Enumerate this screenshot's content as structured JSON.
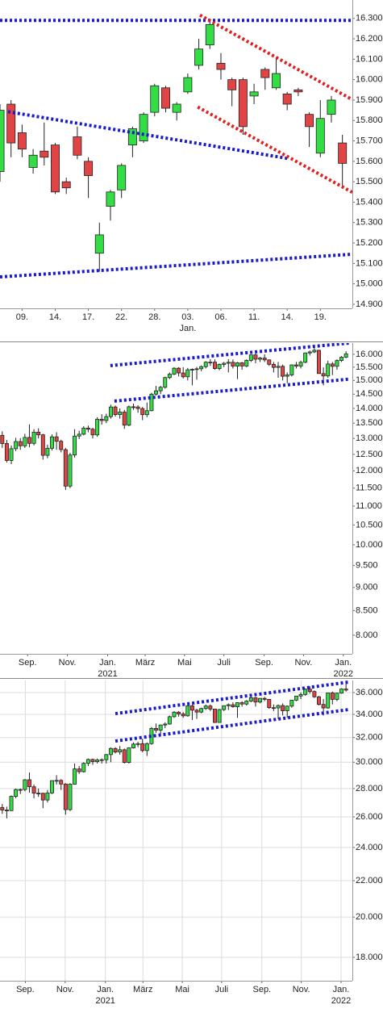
{
  "chart_data": [
    {
      "type": "candlestick",
      "log_scale": false,
      "grid": false,
      "up_color": "#33dd44",
      "down_color": "#e04444",
      "xlim": [
        0,
        31.9
      ],
      "ylim": [
        14880,
        16390
      ],
      "yticks": [
        {
          "value": 14900,
          "label": "14.900"
        },
        {
          "value": 15000,
          "label": "15.000"
        },
        {
          "value": 15100,
          "label": "15.100"
        },
        {
          "value": 15200,
          "label": "15.200"
        },
        {
          "value": 15300,
          "label": "15.300"
        },
        {
          "value": 15400,
          "label": "15.400"
        },
        {
          "value": 15500,
          "label": "15.500"
        },
        {
          "value": 15600,
          "label": "15.600"
        },
        {
          "value": 15700,
          "label": "15.700"
        },
        {
          "value": 15800,
          "label": "15.800"
        },
        {
          "value": 15900,
          "label": "15.900"
        },
        {
          "value": 16000,
          "label": "16.000"
        },
        {
          "value": 16100,
          "label": "16.100"
        },
        {
          "value": 16200,
          "label": "16.200"
        },
        {
          "value": 16300,
          "label": "16.300"
        }
      ],
      "xticks": [
        {
          "value": 2,
          "label": "09."
        },
        {
          "value": 5,
          "label": "14."
        },
        {
          "value": 8,
          "label": "17."
        },
        {
          "value": 11,
          "label": "22."
        },
        {
          "value": 14,
          "label": "28."
        },
        {
          "value": 17,
          "label": "03."
        },
        {
          "value": 20,
          "label": "06."
        },
        {
          "value": 23,
          "label": "11."
        },
        {
          "value": 26,
          "label": "14."
        },
        {
          "value": 29,
          "label": "19."
        }
      ],
      "xsubticks": [
        {
          "value": 17,
          "label": "Jan."
        }
      ],
      "open": [
        15550,
        15880,
        15740,
        15570,
        15650,
        15680,
        15500,
        15720,
        15600,
        15150,
        15380,
        15460,
        15680,
        15700,
        15840,
        15960,
        15840,
        15940,
        16070,
        16170,
        16080,
        16000,
        16000,
        15920,
        16050,
        15960,
        15930,
        15950,
        15830,
        15640,
        15830,
        15690
      ],
      "high": [
        15880,
        15900,
        15780,
        15660,
        15790,
        15690,
        15520,
        15770,
        15620,
        15300,
        15460,
        15590,
        15770,
        15840,
        15980,
        15970,
        15890,
        16030,
        16200,
        16290,
        16130,
        16010,
        16010,
        15980,
        16060,
        16110,
        15940,
        15960,
        15840,
        15900,
        15920,
        15730
      ],
      "low": [
        15500,
        15620,
        15620,
        15540,
        15580,
        15440,
        15440,
        15610,
        15420,
        15060,
        15310,
        15420,
        15620,
        15690,
        15820,
        15840,
        15800,
        15930,
        16050,
        16150,
        16000,
        15870,
        15730,
        15880,
        15950,
        15950,
        15850,
        15920,
        15670,
        15620,
        15790,
        15470
      ],
      "close": [
        15850,
        15690,
        15660,
        15630,
        15620,
        15450,
        15470,
        15630,
        15530,
        15240,
        15450,
        15580,
        15760,
        15830,
        15970,
        15860,
        15880,
        16010,
        16150,
        16270,
        16050,
        15950,
        15770,
        15940,
        16010,
        16030,
        15880,
        15940,
        15770,
        15810,
        15900,
        15590
      ],
      "trend_lines": [
        {
          "color": "#1a1acc",
          "x": [
            0,
            31.9
          ],
          "y": [
            16290,
            16290
          ]
        },
        {
          "color": "#1a1acc",
          "x": [
            0.73,
            26.06
          ],
          "y": [
            15843,
            15614
          ]
        },
        {
          "color": "#1a1acc",
          "x": [
            0,
            31.9
          ],
          "y": [
            15034,
            15145
          ]
        },
        {
          "color": "#e02020",
          "x": [
            18.1,
            31.9
          ],
          "y": [
            16316,
            15902
          ]
        },
        {
          "color": "#e02020",
          "x": [
            17.9,
            31.9
          ],
          "y": [
            15866,
            15448
          ]
        }
      ]
    },
    {
      "type": "candlestick",
      "log_scale": true,
      "grid": false,
      "up_color": "#33dd44",
      "down_color": "#e04444",
      "xlim": [
        -0.5,
        77.4
      ],
      "ylim": [
        7640,
        16450
      ],
      "yticks": [
        {
          "value": 8000,
          "label": "8.000"
        },
        {
          "value": 8500,
          "label": "8.500"
        },
        {
          "value": 9000,
          "label": "9.000"
        },
        {
          "value": 9500,
          "label": "9.500"
        },
        {
          "value": 10000,
          "label": "10.000"
        },
        {
          "value": 10500,
          "label": "10.500"
        },
        {
          "value": 11000,
          "label": "11.000"
        },
        {
          "value": 11500,
          "label": "11.500"
        },
        {
          "value": 12000,
          "label": "12.000"
        },
        {
          "value": 12500,
          "label": "12.500"
        },
        {
          "value": 13000,
          "label": "13.000"
        },
        {
          "value": 13500,
          "label": "13.500"
        },
        {
          "value": 14000,
          "label": "14.000"
        },
        {
          "value": 14500,
          "label": "14.500"
        },
        {
          "value": 15000,
          "label": "15.000"
        },
        {
          "value": 15500,
          "label": "15.500"
        },
        {
          "value": 16000,
          "label": "16.000"
        }
      ],
      "xticks": [
        {
          "value": 5.6,
          "label": "Sep."
        },
        {
          "value": 14.4,
          "label": "Nov."
        },
        {
          "value": 23.3,
          "label": "Jan."
        },
        {
          "value": 31.6,
          "label": "März"
        },
        {
          "value": 40.3,
          "label": "Mai"
        },
        {
          "value": 49,
          "label": "Juli"
        },
        {
          "value": 57.9,
          "label": "Sep."
        },
        {
          "value": 66.6,
          "label": "Nov."
        },
        {
          "value": 75.4,
          "label": "Jan."
        }
      ],
      "xsubticks": [
        {
          "value": 23.3,
          "label": "2021"
        },
        {
          "value": 75.4,
          "label": "2022"
        }
      ],
      "open": [
        13100,
        12838,
        12313,
        12675,
        12901,
        12765,
        13033,
        12842,
        13203,
        13116,
        12469,
        12689,
        13051,
        12909,
        12646,
        11556,
        12480,
        13077,
        13137,
        13336,
        13299,
        13114,
        13631,
        13587,
        13719,
        14050,
        13788,
        13874,
        13433,
        14057,
        14050,
        13994,
        13786,
        13921,
        14502,
        14621,
        14749,
        15107,
        15234,
        15460,
        15280,
        15136,
        15400,
        15417,
        15438,
        15520,
        15693,
        15693,
        15448,
        15607,
        15650,
        15688,
        15540,
        15669,
        15544,
        15761,
        15977,
        15808,
        15852,
        15781,
        15609,
        15491,
        15532,
        15156,
        15206,
        15587,
        15542,
        15688,
        16054,
        16094,
        16160,
        15257,
        15169,
        15623,
        15532,
        15756,
        15885
      ],
      "high": [
        13230,
        12950,
        12780,
        13020,
        13010,
        13150,
        13460,
        13300,
        13330,
        13150,
        12800,
        13130,
        13200,
        12960,
        12700,
        12550,
        13300,
        13250,
        13400,
        13420,
        13350,
        13700,
        13800,
        13820,
        14130,
        14100,
        14000,
        13950,
        14100,
        14170,
        14110,
        14050,
        14200,
        14550,
        14800,
        14800,
        15140,
        15300,
        15500,
        15500,
        15500,
        15470,
        15450,
        15510,
        15570,
        15730,
        15810,
        15800,
        15640,
        15700,
        15810,
        15800,
        15700,
        15700,
        15800,
        15990,
        16030,
        15900,
        16000,
        15800,
        15700,
        15700,
        15600,
        15300,
        15600,
        15700,
        15750,
        16070,
        16150,
        16290,
        16180,
        15490,
        15750,
        15700,
        15800,
        15930,
        16120
      ],
      "low": [
        12700,
        12250,
        12200,
        12600,
        12640,
        12700,
        12720,
        12780,
        13000,
        12340,
        12380,
        12620,
        12640,
        12560,
        11450,
        11500,
        12400,
        12980,
        13100,
        13200,
        13000,
        13050,
        13450,
        13500,
        13650,
        13720,
        13650,
        13310,
        13400,
        13950,
        13850,
        13600,
        13700,
        13900,
        14450,
        14500,
        14700,
        15050,
        15200,
        15150,
        15070,
        15000,
        14820,
        15030,
        15350,
        15450,
        15550,
        15400,
        15380,
        15500,
        15300,
        15450,
        15050,
        15400,
        15500,
        15700,
        15650,
        15700,
        15700,
        15550,
        15300,
        15100,
        15000,
        14900,
        15150,
        15450,
        15450,
        15650,
        15950,
        16050,
        15250,
        14820,
        15100,
        15200,
        15400,
        15700,
        15850
      ],
      "close": [
        12838,
        12313,
        12675,
        12901,
        12765,
        13033,
        12842,
        13203,
        13116,
        12469,
        12689,
        13051,
        12909,
        12646,
        11556,
        12480,
        13077,
        13137,
        13336,
        13299,
        13114,
        13631,
        13587,
        13719,
        14050,
        13788,
        13874,
        13433,
        14057,
        14050,
        13994,
        13786,
        13921,
        14502,
        14621,
        14749,
        15107,
        15234,
        15460,
        15280,
        15136,
        15400,
        15417,
        15438,
        15520,
        15693,
        15693,
        15448,
        15607,
        15650,
        15688,
        15540,
        15669,
        15544,
        15761,
        15977,
        15808,
        15852,
        15781,
        15609,
        15491,
        15532,
        15156,
        15206,
        15587,
        15542,
        15688,
        16054,
        16094,
        16160,
        15257,
        15169,
        15623,
        15532,
        15756,
        15885,
        16020
      ],
      "trend_lines": [
        {
          "color": "#1a1acc",
          "x": [
            23.9,
            76.7
          ],
          "y": [
            15560,
            16450
          ]
        },
        {
          "color": "#1a1acc",
          "x": [
            24.8,
            76.7
          ],
          "y": [
            14255,
            15050
          ]
        }
      ]
    },
    {
      "type": "candlestick",
      "log_scale": true,
      "grid": true,
      "up_color": "#33dd44",
      "down_color": "#e04444",
      "xlim": [
        -0.5,
        77.4
      ],
      "ylim": [
        16930,
        37160
      ],
      "yticks": [
        {
          "value": 18000,
          "label": "18.000"
        },
        {
          "value": 20000,
          "label": "20.000"
        },
        {
          "value": 22000,
          "label": "22.000"
        },
        {
          "value": 24000,
          "label": "24.000"
        },
        {
          "value": 26000,
          "label": "26.000"
        },
        {
          "value": 28000,
          "label": "28.000"
        },
        {
          "value": 30000,
          "label": "30.000"
        },
        {
          "value": 32000,
          "label": "32.000"
        },
        {
          "value": 34000,
          "label": "34.000"
        },
        {
          "value": 36000,
          "label": "36.000"
        }
      ],
      "xticks": [
        {
          "value": 5.1,
          "label": "Sep."
        },
        {
          "value": 13.9,
          "label": "Nov."
        },
        {
          "value": 22.8,
          "label": "Jan."
        },
        {
          "value": 31.1,
          "label": "März"
        },
        {
          "value": 39.8,
          "label": "Mai"
        },
        {
          "value": 48.5,
          "label": "Juli"
        },
        {
          "value": 57.4,
          "label": "Sep."
        },
        {
          "value": 66.1,
          "label": "Nov."
        },
        {
          "value": 74.9,
          "label": "Jan."
        }
      ],
      "xsubticks": [
        {
          "value": 22.8,
          "label": "2021"
        },
        {
          "value": 74.9,
          "label": "2022"
        }
      ],
      "open": [
        26650,
        26470,
        26428,
        27433,
        27931,
        27930,
        28654,
        28133,
        27666,
        27657,
        27174,
        27682,
        28586,
        28606,
        28335,
        26501,
        28323,
        29479,
        29263,
        29910,
        30218,
        30046,
        30179,
        30199,
        30606,
        31097,
        30814,
        30996,
        29982,
        31148,
        31458,
        31494,
        30932,
        31496,
        32778,
        32627,
        33072,
        33153,
        33800,
        34200,
        34043,
        33874,
        34777,
        34382,
        34207,
        34529,
        34756,
        34479,
        33290,
        34433,
        34786,
        34870,
        34687,
        35061,
        34935,
        35208,
        35515,
        35120,
        35455,
        35369,
        34607,
        34584,
        34798,
        34326,
        34746,
        35294,
        35677,
        35820,
        36327,
        36100,
        35602,
        34899,
        34580,
        35971,
        35365,
        35950,
        36338
      ],
      "high": [
        26900,
        26700,
        27500,
        28000,
        28000,
        28700,
        29200,
        28300,
        28000,
        27700,
        27900,
        28600,
        29000,
        28700,
        28400,
        28400,
        29900,
        29700,
        30000,
        30300,
        30300,
        30300,
        30300,
        30650,
        31200,
        31200,
        31300,
        31100,
        31200,
        31600,
        31650,
        31900,
        31600,
        32900,
        33200,
        33100,
        33300,
        33900,
        34300,
        34300,
        34200,
        35000,
        34900,
        34500,
        34600,
        34900,
        34900,
        34500,
        34500,
        34800,
        35000,
        35100,
        35100,
        35200,
        35300,
        35600,
        35600,
        35500,
        35600,
        35400,
        34900,
        34900,
        35000,
        34800,
        35300,
        35700,
        36000,
        36400,
        36600,
        36200,
        35700,
        35400,
        36000,
        36100,
        36000,
        36400,
        36900
      ],
      "low": [
        26200,
        25900,
        26400,
        27300,
        27600,
        27800,
        27700,
        27300,
        27400,
        26600,
        27000,
        27600,
        28300,
        27900,
        26150,
        26400,
        28300,
        29100,
        29200,
        29700,
        29800,
        29900,
        29900,
        29900,
        30000,
        30700,
        30600,
        29900,
        29900,
        31100,
        31200,
        30800,
        30500,
        31400,
        32400,
        32100,
        32800,
        33100,
        33700,
        33800,
        33700,
        33800,
        33500,
        33600,
        34100,
        34400,
        34300,
        33250,
        33300,
        34300,
        34400,
        34600,
        33700,
        34700,
        34800,
        35100,
        34700,
        35000,
        35200,
        34500,
        34300,
        33600,
        33900,
        33700,
        34600,
        35200,
        35400,
        35700,
        35900,
        35500,
        34800,
        33900,
        34500,
        34900,
        35200,
        35900,
        36100
      ],
      "close": [
        26470,
        26428,
        27433,
        27931,
        27930,
        28654,
        28133,
        27666,
        27657,
        27174,
        27682,
        28586,
        28606,
        28335,
        26501,
        28323,
        29479,
        29263,
        29910,
        30218,
        30046,
        30179,
        30199,
        30606,
        31097,
        30814,
        30996,
        29982,
        31148,
        31458,
        31494,
        30932,
        31496,
        32778,
        32627,
        33072,
        33153,
        33800,
        34200,
        34043,
        33874,
        34777,
        34382,
        34207,
        34529,
        34756,
        34479,
        33290,
        34433,
        34786,
        34870,
        34687,
        35061,
        34935,
        35208,
        35515,
        35120,
        35455,
        35369,
        34607,
        34584,
        34798,
        34326,
        34746,
        35294,
        35677,
        35820,
        36327,
        36100,
        35602,
        34899,
        34580,
        35971,
        35365,
        35950,
        36338,
        36231
      ],
      "trend_lines": [
        {
          "color": "#1a1acc",
          "x": [
            25,
            76.5
          ],
          "y": [
            34070,
            37000
          ]
        },
        {
          "color": "#1a1acc",
          "x": [
            25,
            76.5
          ],
          "y": [
            31710,
            34430
          ]
        }
      ]
    }
  ]
}
